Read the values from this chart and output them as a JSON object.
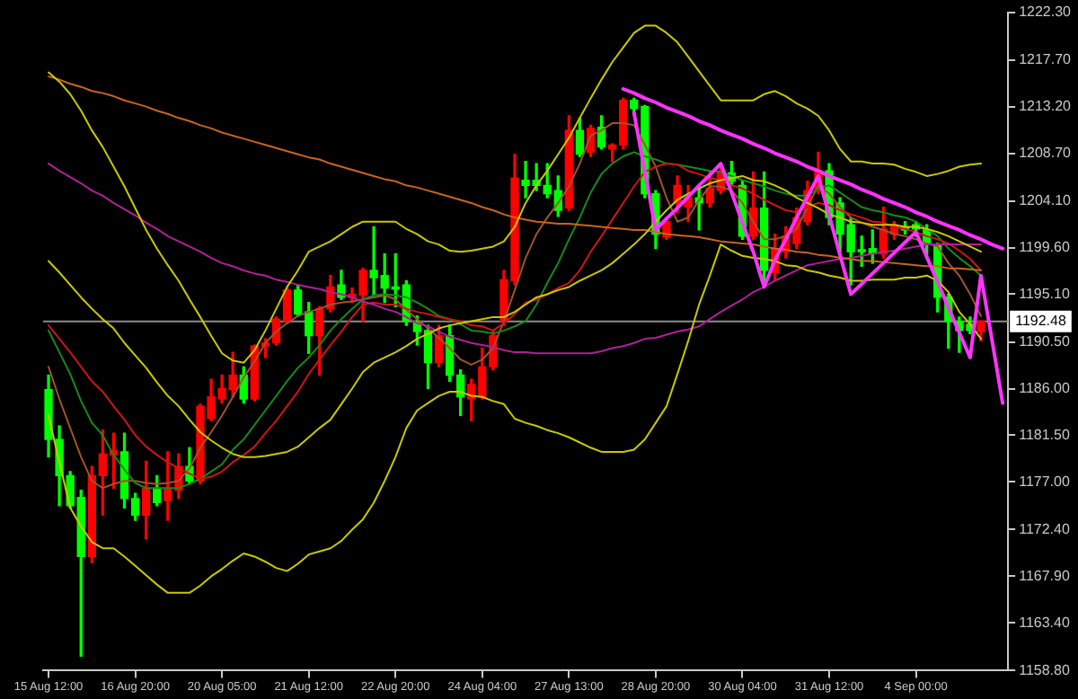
{
  "chart_data": {
    "type": "candlestick",
    "categories": [
      "15 Aug 12:00",
      null,
      null,
      null,
      null,
      null,
      null,
      null,
      "16 Aug 20:00",
      null,
      null,
      null,
      null,
      null,
      null,
      null,
      "20 Aug 05:00",
      null,
      null,
      null,
      null,
      null,
      null,
      null,
      "21 Aug 12:00",
      null,
      null,
      null,
      null,
      null,
      null,
      null,
      "22 Aug 20:00",
      null,
      null,
      null,
      null,
      null,
      null,
      null,
      "24 Aug 04:00",
      null,
      null,
      null,
      null,
      null,
      null,
      null,
      "27 Aug 13:00",
      null,
      null,
      null,
      null,
      null,
      null,
      null,
      "28 Aug 20:00",
      null,
      null,
      null,
      null,
      null,
      null,
      null,
      "30 Aug 04:00",
      null,
      null,
      null,
      null,
      null,
      null,
      null,
      "31 Aug 12:00",
      null,
      null,
      null,
      null,
      null,
      null,
      null,
      "4 Sep 00:00",
      null,
      null,
      null,
      null,
      null,
      null,
      null,
      null
    ],
    "ohlc": [
      [
        1185.9,
        1187.3,
        1179.4,
        1181.1
      ],
      [
        1181.1,
        1182.4,
        1174.7,
        1177.6
      ],
      [
        1177.6,
        1178.0,
        1174.5,
        1174.7
      ],
      [
        1175.5,
        1176.2,
        1160.2,
        1169.8
      ],
      [
        1169.8,
        1178.5,
        1169.2,
        1177.6
      ],
      [
        1177.6,
        1182.0,
        1173.8,
        1179.7
      ],
      [
        1179.6,
        1181.7,
        1176.4,
        1180.0
      ],
      [
        1179.9,
        1181.7,
        1174.5,
        1175.4
      ],
      [
        1175.4,
        1175.9,
        1173.3,
        1173.8
      ],
      [
        1173.8,
        1179.0,
        1171.5,
        1176.4
      ],
      [
        1176.4,
        1177.6,
        1174.7,
        1175.0
      ],
      [
        1175.2,
        1179.9,
        1173.3,
        1176.4
      ],
      [
        1176.2,
        1179.7,
        1175.4,
        1178.5
      ],
      [
        1178.5,
        1180.3,
        1176.8,
        1177.1
      ],
      [
        1177.1,
        1184.5,
        1176.8,
        1184.3
      ],
      [
        1183.1,
        1186.9,
        1182.9,
        1185.2
      ],
      [
        1185.0,
        1187.3,
        1184.6,
        1186.0
      ],
      [
        1185.9,
        1189.5,
        1185.2,
        1187.3
      ],
      [
        1187.3,
        1188.1,
        1184.6,
        1185.0
      ],
      [
        1185.0,
        1190.2,
        1184.8,
        1190.1
      ],
      [
        1190.1,
        1190.8,
        1189.0,
        1190.4
      ],
      [
        1190.4,
        1192.9,
        1190.2,
        1192.7
      ],
      [
        1192.5,
        1195.7,
        1192.3,
        1195.5
      ],
      [
        1195.5,
        1196.0,
        1193.0,
        1193.2
      ],
      [
        1193.4,
        1194.3,
        1189.4,
        1191.1
      ],
      [
        1191.1,
        1193.9,
        1187.3,
        1193.7
      ],
      [
        1193.7,
        1196.9,
        1193.4,
        1195.8
      ],
      [
        1196.0,
        1197.4,
        1194.6,
        1194.8
      ],
      [
        1194.8,
        1195.7,
        1194.3,
        1195.1
      ],
      [
        1195.0,
        1197.6,
        1192.5,
        1197.4
      ],
      [
        1197.4,
        1201.6,
        1195.1,
        1196.7
      ],
      [
        1196.9,
        1199.0,
        1194.3,
        1195.7
      ],
      [
        1195.8,
        1199.0,
        1193.9,
        1195.6
      ],
      [
        1196.0,
        1196.4,
        1192.1,
        1192.5
      ],
      [
        1192.5,
        1193.0,
        1190.2,
        1191.5
      ],
      [
        1191.6,
        1192.1,
        1186.0,
        1188.5
      ],
      [
        1188.5,
        1192.1,
        1188.1,
        1191.1
      ],
      [
        1191.1,
        1192.1,
        1186.7,
        1187.3
      ],
      [
        1187.3,
        1187.8,
        1183.4,
        1185.2
      ],
      [
        1185.0,
        1186.9,
        1182.9,
        1186.4
      ],
      [
        1185.2,
        1189.9,
        1185.0,
        1188.1
      ],
      [
        1188.1,
        1191.6,
        1187.8,
        1191.1
      ],
      [
        1192.5,
        1197.4,
        1192.1,
        1196.5
      ],
      [
        1196.4,
        1208.6,
        1196.0,
        1206.3
      ],
      [
        1206.1,
        1207.9,
        1204.4,
        1205.6
      ],
      [
        1206.1,
        1207.7,
        1205.1,
        1205.6
      ],
      [
        1205.6,
        1207.7,
        1204.4,
        1204.8
      ],
      [
        1205.1,
        1206.5,
        1202.6,
        1203.2
      ],
      [
        1203.4,
        1212.3,
        1203.2,
        1210.9
      ],
      [
        1210.9,
        1212.1,
        1208.4,
        1208.6
      ],
      [
        1208.8,
        1211.4,
        1208.4,
        1211.1
      ],
      [
        1211.2,
        1212.3,
        1209.1,
        1209.3
      ],
      [
        1209.1,
        1209.6,
        1207.9,
        1209.5
      ],
      [
        1209.5,
        1214.0,
        1209.1,
        1213.8
      ],
      [
        1213.8,
        1214.0,
        1212.6,
        1213.0
      ],
      [
        1213.2,
        1213.3,
        1204.4,
        1204.8
      ],
      [
        1204.8,
        1205.1,
        1199.5,
        1200.9
      ],
      [
        1200.6,
        1202.5,
        1200.4,
        1202.1
      ],
      [
        1203.9,
        1206.5,
        1203.0,
        1205.6
      ],
      [
        1203.5,
        1205.6,
        1202.1,
        1204.4
      ],
      [
        1204.4,
        1205.6,
        1201.3,
        1203.9
      ],
      [
        1203.9,
        1207.0,
        1203.5,
        1205.3
      ],
      [
        1205.1,
        1207.7,
        1204.8,
        1206.8
      ],
      [
        1206.8,
        1207.9,
        1205.6,
        1206.0
      ],
      [
        1205.6,
        1206.0,
        1200.4,
        1200.7
      ],
      [
        1200.7,
        1206.9,
        1200.4,
        1203.4
      ],
      [
        1203.4,
        1206.9,
        1196.4,
        1197.4
      ],
      [
        1197.2,
        1200.9,
        1196.5,
        1199.5
      ],
      [
        1199.2,
        1201.6,
        1198.6,
        1200.7
      ],
      [
        1200.0,
        1203.4,
        1199.5,
        1202.5
      ],
      [
        1202.1,
        1206.0,
        1201.8,
        1205.1
      ],
      [
        1205.1,
        1208.8,
        1204.8,
        1207.0
      ],
      [
        1207.0,
        1207.7,
        1201.8,
        1202.5
      ],
      [
        1203.9,
        1204.4,
        1199.2,
        1200.9
      ],
      [
        1201.8,
        1202.5,
        1196.0,
        1199.2
      ],
      [
        1199.4,
        1200.7,
        1197.8,
        1199.2
      ],
      [
        1199.5,
        1201.3,
        1198.1,
        1199.0
      ],
      [
        1199.0,
        1203.5,
        1198.6,
        1201.4
      ],
      [
        1200.9,
        1202.1,
        1200.4,
        1201.8
      ],
      [
        1201.6,
        1202.1,
        1200.9,
        1201.3
      ],
      [
        1201.8,
        1202.1,
        1200.7,
        1201.4
      ],
      [
        1201.3,
        1201.8,
        1198.6,
        1199.9
      ],
      [
        1199.9,
        1200.0,
        1193.4,
        1194.8
      ],
      [
        1194.8,
        1195.1,
        1189.9,
        1192.5
      ],
      [
        1192.5,
        1192.9,
        1189.5,
        1191.6
      ],
      [
        1192.2,
        1192.9,
        1191.3,
        1191.6
      ],
      [
        1191.5,
        1192.5,
        1190.6,
        1192.5
      ],
      null,
      null
    ],
    "colors": [
      "#00ff00",
      "#00ff00",
      "#00ff00",
      "#00ff00",
      "#ff0000",
      "#ff0000",
      "#ff0000",
      "#00ff00",
      "#00ff00",
      "#ff0000",
      "#00ff00",
      "#ff0000",
      "#ff0000",
      "#00ff00",
      "#ff0000",
      "#ff0000",
      "#ff0000",
      "#ff0000",
      "#00ff00",
      "#ff0000",
      "#ff0000",
      "#ff0000",
      "#ff0000",
      "#00ff00",
      "#00ff00",
      "#ff0000",
      "#ff0000",
      "#00ff00",
      "#ff0000",
      "#ff0000",
      "#00ff00",
      "#00ff00",
      "#00ff00",
      "#00ff00",
      "#00ff00",
      "#00ff00",
      "#ff0000",
      "#00ff00",
      "#00ff00",
      "#ff0000",
      "#ff0000",
      "#ff0000",
      "#ff0000",
      "#ff0000",
      "#00ff00",
      "#00ff00",
      "#00ff00",
      "#00ff00",
      "#ff0000",
      "#00ff00",
      "#ff0000",
      "#00ff00",
      "#ff0000",
      "#ff0000",
      "#00ff00",
      "#00ff00",
      "#00ff00",
      "#ff0000",
      "#ff0000",
      "#ff0000",
      "#00ff00",
      "#ff0000",
      "#ff0000",
      "#00ff00",
      "#00ff00",
      "#ff0000",
      "#00ff00",
      "#ff0000",
      "#ff0000",
      "#ff0000",
      "#ff0000",
      "#ff0000",
      "#00ff00",
      "#00ff00",
      "#00ff00",
      "#00ff00",
      "#00ff00",
      "#ff0000",
      "#ff0000",
      "#00ff00",
      "#00ff00",
      "#00ff00",
      "#00ff00",
      "#00ff00",
      "#00ff00",
      "#00ff00",
      "#ff0000",
      null,
      null
    ],
    "series": [
      {
        "type": "line",
        "color": "#c8c800",
        "values": [
          1216.5,
          1215.6,
          1214.4,
          1212.8,
          1210.9,
          1209.3,
          1207.4,
          1205.5,
          1203.4,
          1201.3,
          1199.5,
          1197.9,
          1196.4,
          1194.6,
          1192.9,
          1191.1,
          1189.4,
          1188.7,
          1188.5,
          1189.7,
          1191.6,
          1193.7,
          1195.8,
          1197.4,
          1199.2,
          1199.7,
          1200.2,
          1200.9,
          1201.6,
          1202.1,
          1202.1,
          1202.1,
          1202.1,
          1201.4,
          1200.9,
          1200.2,
          1199.9,
          1199.3,
          1199.2,
          1199.3,
          1199.5,
          1199.7,
          1200.2,
          1201.6,
          1203.9,
          1205.6,
          1207.0,
          1208.6,
          1210.2,
          1212.1,
          1214.0,
          1215.8,
          1217.5,
          1218.9,
          1220.3,
          1221.0,
          1221.0,
          1220.3,
          1219.4,
          1218.0,
          1216.6,
          1215.2,
          1213.8,
          1213.8,
          1213.8,
          1213.8,
          1214.4,
          1214.7,
          1214.2,
          1213.5,
          1213.0,
          1212.3,
          1210.9,
          1209.1,
          1207.9,
          1207.9,
          1207.7,
          1207.7,
          1207.6,
          1207.2,
          1206.9,
          1206.5,
          1206.7,
          1207.0,
          1207.4,
          1207.6,
          1207.7,
          null,
          null
        ]
      },
      {
        "type": "line",
        "color": "#c8c800",
        "values": [
          1198.3,
          1197.2,
          1196.0,
          1194.8,
          1193.7,
          1192.7,
          1191.8,
          1190.4,
          1189.2,
          1188.0,
          1186.6,
          1185.3,
          1184.3,
          1183.0,
          1181.8,
          1181.0,
          1180.3,
          1179.7,
          1179.4,
          1179.4,
          1179.5,
          1179.7,
          1179.9,
          1180.4,
          1181.3,
          1182.2,
          1183.0,
          1184.5,
          1186.0,
          1187.6,
          1188.5,
          1189.0,
          1189.5,
          1190.1,
          1190.8,
          1191.3,
          1191.8,
          1192.1,
          1192.3,
          1192.5,
          1192.7,
          1192.9,
          1192.9,
          1193.4,
          1194.1,
          1194.8,
          1195.1,
          1195.5,
          1195.8,
          1196.4,
          1196.9,
          1197.4,
          1198.1,
          1199.0,
          1199.9,
          1200.9,
          1202.1,
          1203.2,
          1204.2,
          1204.8,
          1205.3,
          1205.8,
          1206.1,
          1206.3,
          1206.5,
          1206.1,
          1206.0,
          1205.6,
          1205.1,
          1204.4,
          1203.9,
          1203.4,
          1202.8,
          1202.5,
          1202.1,
          1202.0,
          1201.8,
          1201.8,
          1201.8,
          1201.6,
          1201.6,
          1201.4,
          1201.1,
          1200.7,
          1200.2,
          1199.7,
          1199.2,
          null,
          null
        ]
      },
      {
        "type": "line",
        "color": "#c8c800",
        "values": [
          1183.4,
          1178.9,
          1174.5,
          1172.7,
          1171.2,
          1170.6,
          1170.6,
          1169.8,
          1168.9,
          1168.0,
          1167.1,
          1166.3,
          1166.3,
          1166.3,
          1167.0,
          1167.9,
          1168.6,
          1169.4,
          1170.1,
          1169.8,
          1169.3,
          1168.7,
          1168.4,
          1169.1,
          1170.0,
          1170.3,
          1170.6,
          1171.3,
          1172.4,
          1173.4,
          1175.0,
          1177.1,
          1179.4,
          1182.2,
          1183.9,
          1184.6,
          1185.3,
          1185.7,
          1185.7,
          1185.3,
          1185.2,
          1184.8,
          1184.5,
          1183.1,
          1182.7,
          1182.4,
          1182.0,
          1181.7,
          1181.3,
          1180.8,
          1180.3,
          1179.9,
          1179.9,
          1179.9,
          1180.1,
          1181.1,
          1182.7,
          1184.3,
          1187.4,
          1190.6,
          1194.1,
          1196.9,
          1199.9,
          1199.3,
          1198.8,
          1198.6,
          1198.5,
          1198.3,
          1197.9,
          1197.8,
          1197.4,
          1197.2,
          1196.9,
          1196.7,
          1196.4,
          1196.4,
          1196.5,
          1196.5,
          1196.5,
          1196.7,
          1196.7,
          1196.9,
          1196.4,
          1195.3,
          1193.4,
          1192.2,
          1190.8,
          null,
          null
        ]
      },
      {
        "type": "line",
        "color": "#c8641e",
        "values": [
          1216.1,
          1215.8,
          1215.4,
          1215.1,
          1214.7,
          1214.5,
          1214.2,
          1213.8,
          1213.5,
          1213.2,
          1212.8,
          1212.5,
          1212.1,
          1211.8,
          1211.4,
          1211.1,
          1210.7,
          1210.4,
          1210.1,
          1209.8,
          1209.5,
          1209.2,
          1208.9,
          1208.6,
          1208.3,
          1208.1,
          1207.7,
          1207.4,
          1207.1,
          1206.8,
          1206.5,
          1206.2,
          1206.0,
          1205.6,
          1205.4,
          1205.1,
          1204.8,
          1204.5,
          1204.2,
          1203.9,
          1203.5,
          1203.2,
          1202.8,
          1202.5,
          1202.3,
          1202.1,
          1202.0,
          1201.9,
          1201.9,
          1201.8,
          1201.7,
          1201.6,
          1201.5,
          1201.4,
          1201.3,
          1201.3,
          1201.1,
          1200.9,
          1200.8,
          1200.7,
          1200.6,
          1200.4,
          1200.2,
          1200.1,
          1200.0,
          1199.9,
          1199.7,
          1199.5,
          1199.4,
          1199.2,
          1199.1,
          1198.9,
          1198.8,
          1198.6,
          1198.5,
          1198.3,
          1198.3,
          1198.2,
          1198.1,
          1198.0,
          1197.9,
          1197.8,
          1197.8,
          1197.6,
          1197.6,
          1197.5,
          1197.4,
          null,
          null
        ]
      },
      {
        "type": "line",
        "color": "#b0209a",
        "values": [
          1207.7,
          1207.0,
          1206.4,
          1205.8,
          1205.1,
          1204.6,
          1203.9,
          1203.3,
          1202.7,
          1202.0,
          1201.4,
          1200.7,
          1200.2,
          1199.7,
          1199.2,
          1198.6,
          1198.1,
          1197.8,
          1197.4,
          1197.1,
          1196.9,
          1196.5,
          1196.3,
          1196.0,
          1195.8,
          1195.6,
          1195.3,
          1195.1,
          1194.8,
          1194.4,
          1194.1,
          1193.7,
          1193.4,
          1192.9,
          1192.3,
          1192.0,
          1191.5,
          1191.0,
          1190.7,
          1190.4,
          1190.2,
          1190.0,
          1189.7,
          1189.5,
          1189.5,
          1189.4,
          1189.4,
          1189.4,
          1189.4,
          1189.4,
          1189.4,
          1189.6,
          1189.9,
          1190.1,
          1190.4,
          1190.8,
          1190.9,
          1191.2,
          1191.5,
          1191.7,
          1192.0,
          1192.7,
          1193.4,
          1194.0,
          1194.6,
          1195.3,
          1195.8,
          1196.4,
          1196.9,
          1197.4,
          1197.9,
          1198.1,
          1198.3,
          1198.5,
          1198.6,
          1198.8,
          1199.0,
          1199.2,
          1199.3,
          1199.5,
          1199.7,
          1199.9,
          1199.9,
          1199.9,
          1199.9,
          1199.9,
          1199.9,
          null,
          null
        ]
      },
      {
        "type": "line",
        "color": "#d01414",
        "values": [
          1192.1,
          1190.8,
          1189.5,
          1188.1,
          1186.7,
          1185.7,
          1184.3,
          1183.0,
          1181.5,
          1180.4,
          1179.6,
          1178.9,
          1178.3,
          1177.8,
          1177.3,
          1177.5,
          1178.0,
          1178.9,
          1179.6,
          1180.4,
          1181.7,
          1182.9,
          1184.3,
          1185.7,
          1187.4,
          1188.8,
          1190.2,
          1191.5,
          1192.9,
          1194.1,
          1194.3,
          1194.1,
          1194.1,
          1193.7,
          1193.4,
          1193.2,
          1192.9,
          1192.7,
          1192.5,
          1192.1,
          1192.0,
          1191.6,
          1192.3,
          1193.2,
          1194.3,
          1194.6,
          1195.1,
          1195.7,
          1196.2,
          1197.4,
          1199.2,
          1200.7,
          1202.3,
          1203.9,
          1205.5,
          1206.9,
          1207.4,
          1207.7,
          1207.6,
          1207.0,
          1206.7,
          1206.3,
          1206.1,
          1205.6,
          1205.3,
          1204.8,
          1204.2,
          1203.7,
          1203.2,
          1203.0,
          1203.5,
          1203.9,
          1203.7,
          1203.2,
          1202.8,
          1202.5,
          1202.1,
          1202.0,
          1201.6,
          1201.4,
          1201.1,
          1200.7,
          1200.4,
          1200.0,
          1199.3,
          1198.5,
          1197.4,
          null,
          null
        ]
      },
      {
        "type": "line",
        "color": "#178a17",
        "values": [
          1191.6,
          1189.5,
          1187.4,
          1184.8,
          1182.7,
          1181.5,
          1179.6,
          1178.2,
          1176.9,
          1176.4,
          1176.4,
          1176.4,
          1176.4,
          1176.8,
          1177.3,
          1178.0,
          1178.7,
          1180.1,
          1181.1,
          1182.5,
          1183.9,
          1185.3,
          1186.7,
          1188.0,
          1189.0,
          1190.2,
          1191.6,
          1192.7,
          1193.7,
          1194.6,
          1195.0,
          1195.1,
          1195.0,
          1194.8,
          1194.3,
          1193.7,
          1193.0,
          1192.7,
          1192.2,
          1191.6,
          1191.5,
          1191.3,
          1191.6,
          1192.0,
          1192.5,
          1194.1,
          1196.2,
          1198.1,
          1200.4,
          1202.5,
          1204.9,
          1206.7,
          1207.7,
          1208.4,
          1208.8,
          1208.4,
          1208.1,
          1207.7,
          1207.6,
          1207.4,
          1207.2,
          1207.0,
          1206.9,
          1206.5,
          1206.1,
          1205.8,
          1205.5,
          1205.1,
          1204.8,
          1204.6,
          1204.6,
          1205.3,
          1205.6,
          1204.9,
          1204.2,
          1203.5,
          1203.2,
          1203.0,
          1202.7,
          1202.5,
          1202.1,
          1201.4,
          1200.7,
          1199.5,
          1198.6,
          1197.8,
          1196.9,
          null,
          null
        ]
      },
      {
        "type": "line",
        "color": "#a0522d",
        "values": [
          1188.1,
          1185.0,
          1182.2,
          1179.4,
          1177.1,
          1176.4,
          1176.8,
          1177.1,
          1177.1,
          1176.9,
          1176.8,
          1176.9,
          1177.1,
          1178.3,
          1180.3,
          1181.8,
          1183.4,
          1185.2,
          1187.1,
          1188.6,
          1190.4,
          1191.5,
          1192.3,
          1193.0,
          1193.4,
          1193.7,
          1194.1,
          1194.3,
          1194.4,
          1194.6,
          1194.8,
          1195.0,
          1194.6,
          1193.6,
          1192.7,
          1191.8,
          1190.9,
          1189.9,
          1188.8,
          1188.3,
          1188.8,
          1189.9,
          1192.5,
          1195.5,
          1198.6,
          1200.9,
          1202.5,
          1203.9,
          1205.5,
          1207.7,
          1210.4,
          1210.9,
          1211.6,
          1211.6,
          1211.4,
          1209.5,
          1207.4,
          1204.4,
          1202.1,
          1202.5,
          1204.2,
          1205.5,
          1205.5,
          1205.1,
          1203.9,
          1202.1,
          1200.4,
          1200.4,
          1200.7,
          1201.4,
          1203.5,
          1205.6,
          1204.8,
          1203.5,
          1202.5,
          1202.0,
          1201.6,
          1201.3,
          1200.9,
          1200.7,
          1200.4,
          1200.0,
          1199.7,
          1198.1,
          1196.9,
          1195.1,
          1193.0,
          null,
          null
        ]
      },
      {
        "type": "line",
        "color": "#ff33ff",
        "values": [
          null,
          null,
          null,
          null,
          null,
          null,
          null,
          null,
          null,
          null,
          null,
          null,
          null,
          null,
          null,
          null,
          null,
          null,
          null,
          null,
          null,
          null,
          null,
          null,
          null,
          null,
          null,
          null,
          null,
          null,
          null,
          null,
          null,
          null,
          null,
          null,
          null,
          null,
          null,
          null,
          null,
          null,
          null,
          null,
          null,
          null,
          null,
          null,
          null,
          null,
          null,
          null,
          null,
          1214.9,
          1214.5,
          1214.0,
          1213.6,
          1213.1,
          1212.7,
          1212.3,
          1211.8,
          1211.4,
          1210.9,
          1210.5,
          1210.1,
          1209.6,
          1209.2,
          1208.7,
          1208.3,
          1207.9,
          1207.4,
          1207.0,
          1206.5,
          1206.1,
          1205.7,
          1205.2,
          1204.8,
          1204.3,
          1203.9,
          1203.5,
          1203.0,
          1202.6,
          1202.1,
          1201.7,
          1201.3,
          1200.8,
          1200.4,
          1199.9,
          1199.5
        ]
      },
      {
        "type": "line",
        "color": "#ff33ff",
        "values": [
          null,
          null,
          null,
          null,
          null,
          null,
          null,
          null,
          null,
          null,
          null,
          null,
          null,
          null,
          null,
          null,
          null,
          null,
          null,
          null,
          null,
          null,
          null,
          null,
          null,
          null,
          null,
          null,
          null,
          null,
          null,
          null,
          null,
          null,
          null,
          null,
          null,
          null,
          null,
          null,
          null,
          null,
          null,
          null,
          null,
          null,
          null,
          null,
          null,
          null,
          null,
          null,
          null,
          null,
          1212.6,
          1206.9,
          1201.3,
          1202.4,
          1203.4,
          1204.5,
          1205.6,
          1206.6,
          1207.7,
          1204.9,
          1202.0,
          1199.2,
          1195.8,
          1198.4,
          1200.4,
          1202.5,
          1204.5,
          1206.5,
          1202.7,
          1198.9,
          1195.1,
          1196.1,
          1197.1,
          1198.1,
          1199.1,
          1200.1,
          1201.1,
          1198.7,
          1196.3,
          1193.8,
          1191.4,
          1189.0,
          1196.9,
          1190.8,
          1184.6
        ]
      }
    ],
    "ref_lines": [
      {
        "axis": "y",
        "value": 1192.48,
        "label": "1192.48",
        "color": "#8c8c8c"
      }
    ],
    "ylim": [
      1158.8,
      1222.3
    ],
    "yticks": [
      {
        "value": 1158.8,
        "label": "1158.80"
      },
      {
        "value": 1163.4,
        "label": "1163.40"
      },
      {
        "value": 1167.9,
        "label": "1167.90"
      },
      {
        "value": 1172.4,
        "label": "1172.40"
      },
      {
        "value": 1177.0,
        "label": "1177.00"
      },
      {
        "value": 1181.5,
        "label": "1181.50"
      },
      {
        "value": 1186.0,
        "label": "1186.00"
      },
      {
        "value": 1190.5,
        "label": "1190.50"
      },
      {
        "value": 1195.1,
        "label": "1195.10"
      },
      {
        "value": 1199.6,
        "label": "1199.60"
      },
      {
        "value": 1204.1,
        "label": "1204.10"
      },
      {
        "value": 1208.7,
        "label": "1208.70"
      },
      {
        "value": 1213.2,
        "label": "1213.20"
      },
      {
        "value": 1217.7,
        "label": "1217.70"
      },
      {
        "value": 1222.3,
        "label": "1222.30"
      }
    ],
    "grid": false,
    "legend": false
  }
}
